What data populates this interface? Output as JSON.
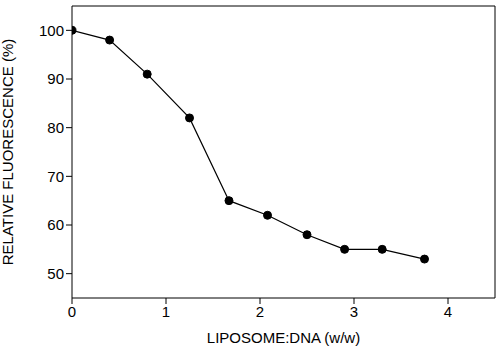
{
  "chart_data": {
    "type": "line",
    "x_label": "LIPOSOME:DNA (w/w)",
    "y_label": "RELATIVE FLUORESCENCE (%)",
    "x": [
      0,
      0.4,
      0.8,
      1.25,
      1.67,
      2.08,
      2.5,
      2.9,
      3.3,
      3.75
    ],
    "values": [
      100,
      98,
      91,
      82,
      65,
      62,
      58,
      55,
      55,
      53
    ],
    "color": "#000000",
    "marker": "circle",
    "line_style": "solid",
    "xlim": [
      0,
      4.5
    ],
    "xticks": [
      0,
      1,
      2,
      3,
      4
    ],
    "ylim": [
      45,
      105
    ],
    "yticks": [
      50,
      60,
      70,
      80,
      90,
      100
    ],
    "grid": false
  }
}
